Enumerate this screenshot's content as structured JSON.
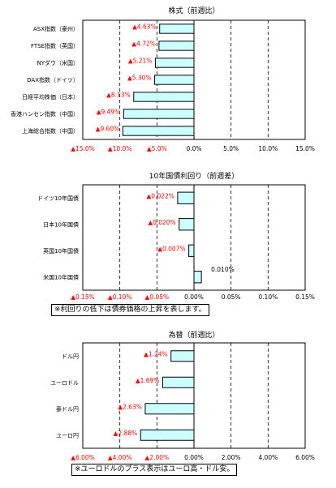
{
  "colors": {
    "bar_fill": "#ccffff",
    "bar_stroke": "#000000",
    "negative_text": "#ff0000",
    "positive_text": "#000000"
  },
  "chart_data": [
    {
      "type": "bar",
      "orientation": "horizontal",
      "title": "株式（前週比）",
      "categories": [
        "ASX指数（豪州）",
        "FTSE指数（英国）",
        "NYダウ（米国）",
        "DAX指数（ドイツ）",
        "日経平均株価（日本）",
        "香港ハンセン指数（中国）",
        "上海総合指数（中国）"
      ],
      "values": [
        -4.63,
        -4.72,
        -5.21,
        -5.3,
        -8.13,
        -9.49,
        -9.6
      ],
      "value_labels": [
        "▲4.63%",
        "▲4.72%",
        "▲5.21%",
        "▲5.30%",
        "▲8.13%",
        "▲9.49%",
        "▲9.60%"
      ],
      "xlim": [
        -15,
        15
      ],
      "xticks": [
        -15,
        -10,
        -5,
        0,
        5,
        10,
        15
      ],
      "xtick_labels": [
        "▲15.0%",
        "▲10.0%",
        "▲5.0%",
        "0.0%",
        "5.0%",
        "10.0%",
        "15.0%"
      ],
      "grid": "vertical dashed",
      "note": ""
    },
    {
      "type": "bar",
      "orientation": "horizontal",
      "title": "10年国債利回り（前週差）",
      "categories": [
        "ドイツ10年国債",
        "日本10年国債",
        "英国10年国債",
        "米国10年国債"
      ],
      "values": [
        -0.022,
        -0.02,
        -0.007,
        0.01
      ],
      "value_labels": [
        "▲0.022%",
        "▲0.020%",
        "▲0.007%",
        "0.010%"
      ],
      "xlim": [
        -0.15,
        0.15
      ],
      "xticks": [
        -0.15,
        -0.1,
        -0.05,
        0,
        0.05,
        0.1,
        0.15
      ],
      "xtick_labels": [
        "▲0.15%",
        "▲0.10%",
        "▲0.05%",
        "0.00%",
        "0.05%",
        "0.10%",
        "0.15%"
      ],
      "grid": "vertical dashed",
      "note": "※利回りの低下は債券価格の上昇を表します。"
    },
    {
      "type": "bar",
      "orientation": "horizontal",
      "title": "為替（前週比）",
      "categories": [
        "ドル円",
        "ユーロドル",
        "豪ドル円",
        "ユーロ円"
      ],
      "values": [
        -1.24,
        -1.69,
        -2.63,
        -2.88
      ],
      "value_labels": [
        "▲1.24%",
        "▲1.69%",
        "▲2.63%",
        "▲2.88%"
      ],
      "xlim": [
        -6,
        6
      ],
      "xticks": [
        -6,
        -4,
        -2,
        0,
        2,
        4,
        6
      ],
      "xtick_labels": [
        "▲6.00%",
        "▲4.00%",
        "▲2.00%",
        "0.00%",
        "2.00%",
        "4.00%",
        "6.00%"
      ],
      "grid": "vertical dashed",
      "note": "※ユーロドルのプラス表示はユーロ高・ドル安。"
    }
  ]
}
